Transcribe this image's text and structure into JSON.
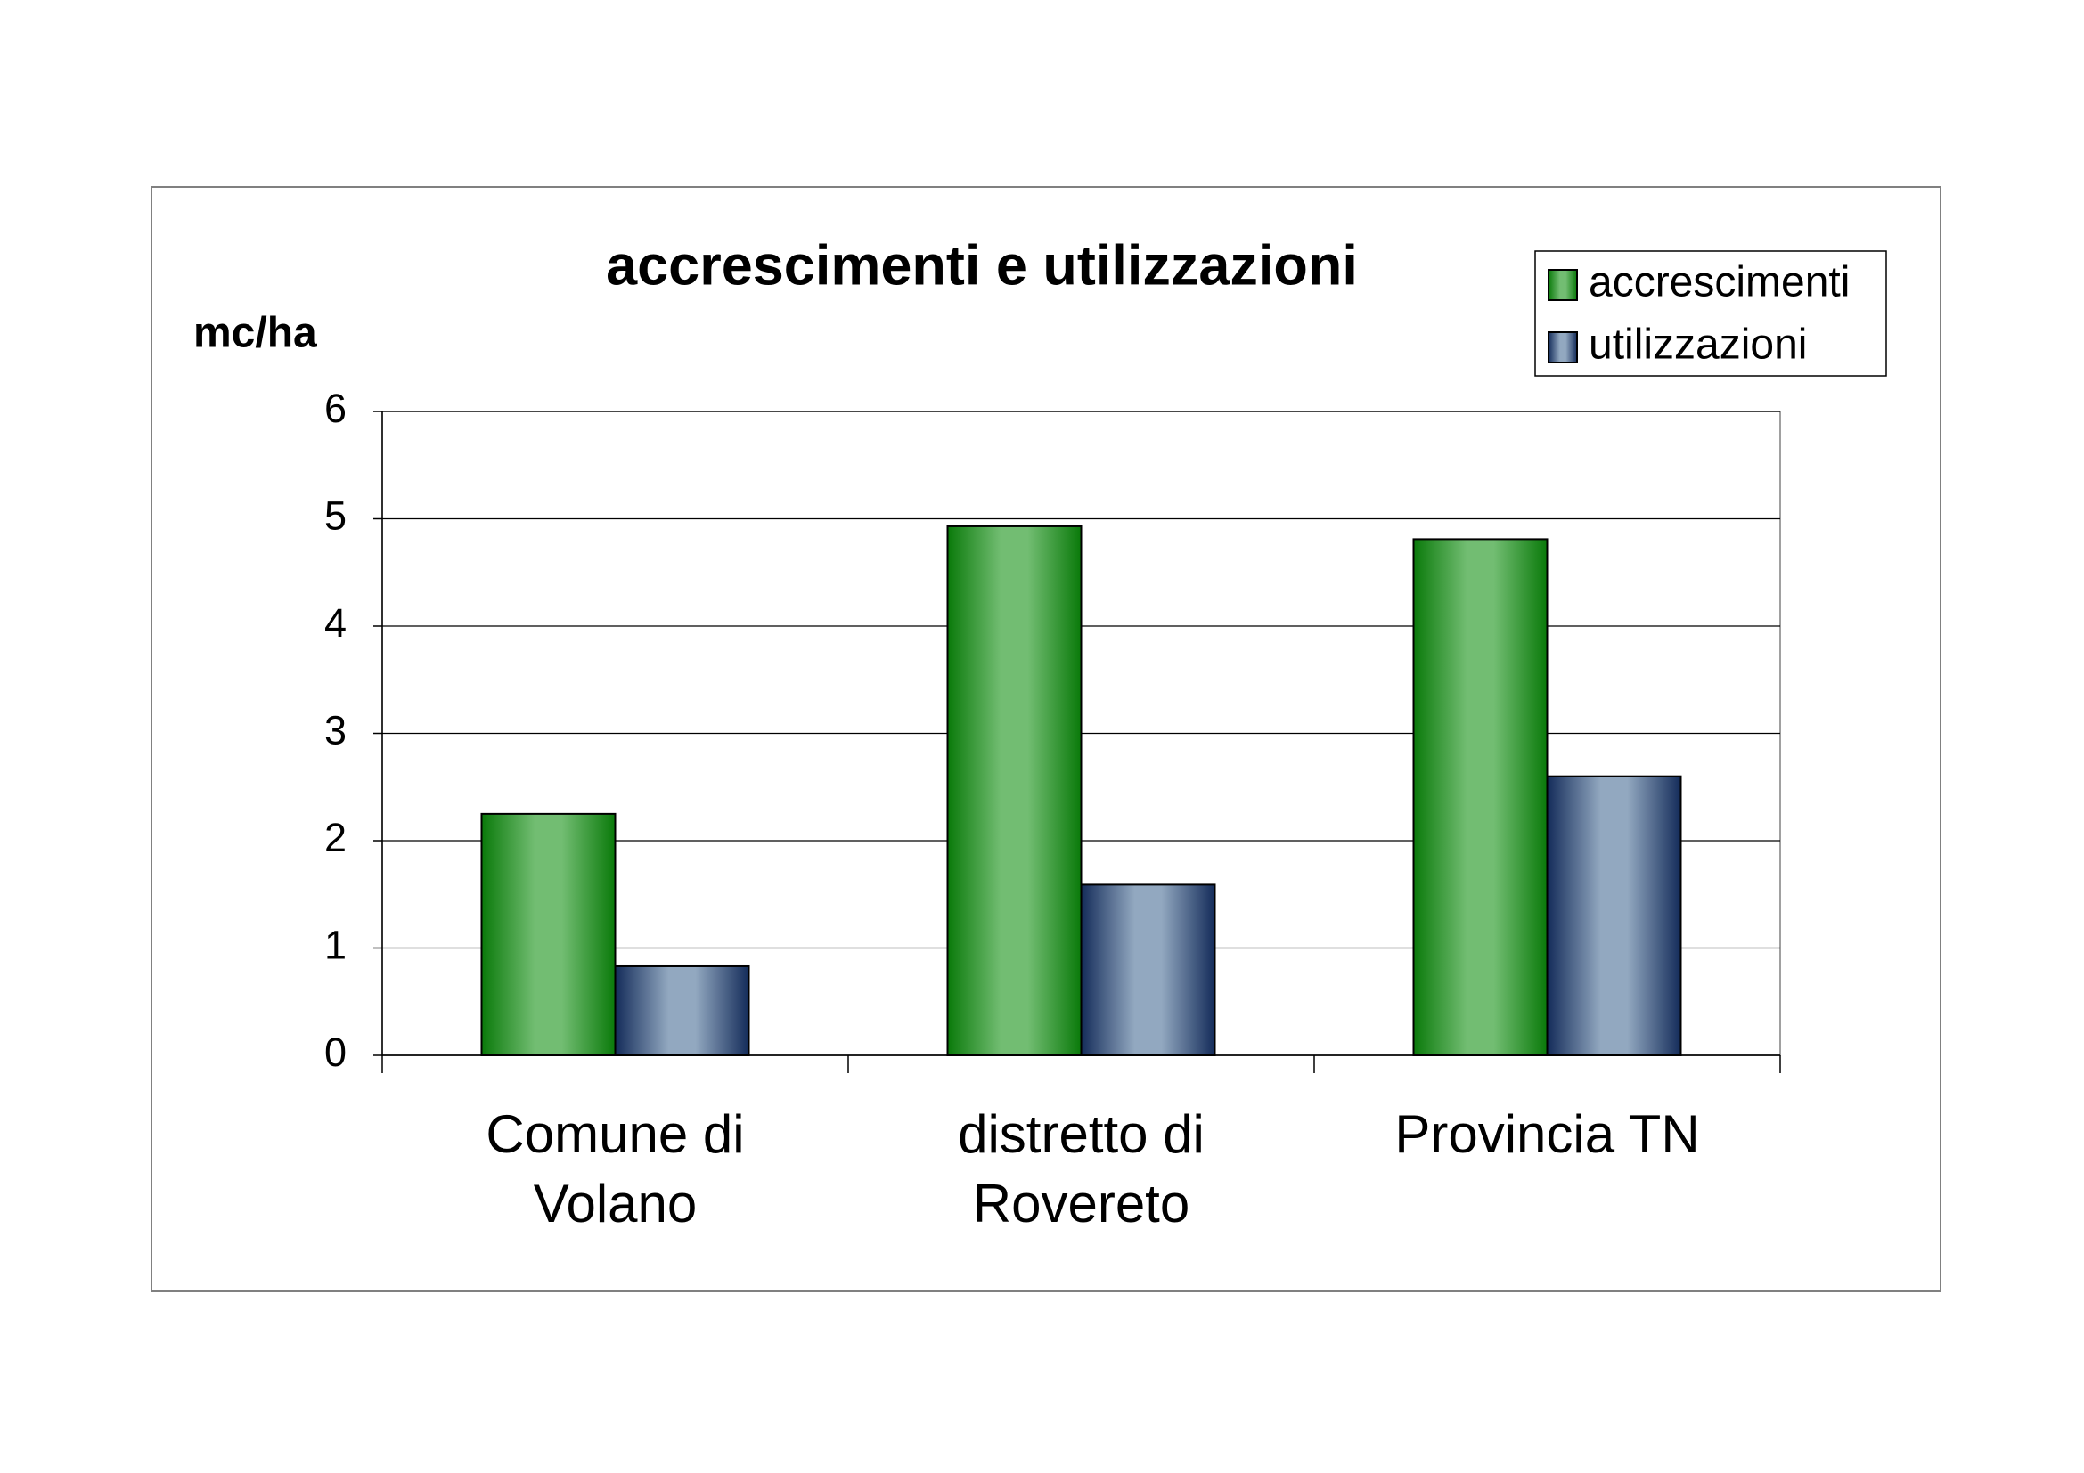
{
  "chart_data": {
    "type": "bar",
    "title": "accrescimenti e utilizzazioni",
    "y_label": "mc/ha",
    "categories": [
      [
        "Comune di",
        "Volano"
      ],
      [
        "distretto di",
        "Rovereto"
      ],
      [
        "Provincia TN"
      ]
    ],
    "series": [
      {
        "name": "accrescimenti",
        "color": "#72bd72",
        "values": [
          2.25,
          4.93,
          4.81
        ]
      },
      {
        "name": "utilizzazioni",
        "color": "#92a8c0",
        "values": [
          0.83,
          1.59,
          2.6
        ]
      }
    ],
    "ylim": [
      0,
      6
    ],
    "yticks": [
      0,
      1,
      2,
      3,
      4,
      5,
      6
    ],
    "grid": true,
    "legend": "top-right"
  }
}
